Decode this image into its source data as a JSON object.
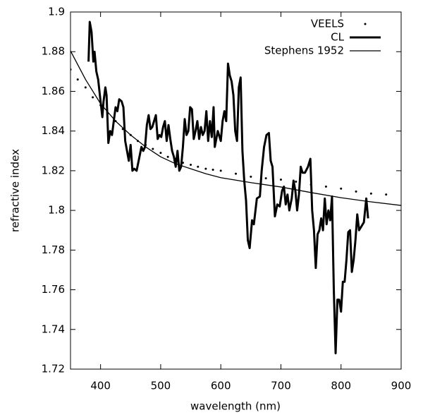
{
  "chart_data": {
    "type": "line",
    "xlabel": "wavelength (nm)",
    "ylabel": "refractive index",
    "xlim": [
      350,
      900
    ],
    "xticks": [
      400,
      500,
      600,
      700,
      800,
      900
    ],
    "ylim": [
      1.72,
      1.9
    ],
    "yticks": [
      1.72,
      1.74,
      1.76,
      1.78,
      1.8,
      1.82,
      1.84,
      1.86,
      1.88,
      1.9
    ],
    "legend": "upper right",
    "series": [
      {
        "name": "VEELS",
        "color": "#000000",
        "style": "dots",
        "width": 3,
        "x": [
          350,
          362,
          375,
          387,
          400,
          412,
          425,
          437,
          450,
          462,
          475,
          487,
          500,
          512,
          525,
          537,
          550,
          562,
          575,
          587,
          600,
          625,
          650,
          675,
          700,
          725,
          750,
          775,
          800,
          825,
          850,
          875
        ],
        "values": [
          1.871,
          1.866,
          1.862,
          1.857,
          1.853,
          1.849,
          1.845,
          1.841,
          1.838,
          1.835,
          1.833,
          1.831,
          1.829,
          1.827,
          1.826,
          1.824,
          1.823,
          1.822,
          1.821,
          1.8205,
          1.82,
          1.8185,
          1.817,
          1.8162,
          1.8155,
          1.8145,
          1.813,
          1.812,
          1.811,
          1.8095,
          1.8085,
          1.808
        ]
      },
      {
        "name": "CL",
        "color": "#000000",
        "style": "line",
        "width": 3,
        "x": [
          380,
          382,
          385,
          388,
          390,
          393,
          396,
          400,
          403,
          405,
          408,
          410,
          413,
          416,
          419,
          422,
          425,
          428,
          431,
          435,
          438,
          441,
          444,
          447,
          450,
          453,
          456,
          460,
          464,
          468,
          471,
          474,
          477,
          480,
          483,
          486,
          489,
          492,
          495,
          498,
          501,
          504,
          507,
          510,
          513,
          516,
          519,
          522,
          525,
          528,
          531,
          534,
          537,
          540,
          543,
          546,
          549,
          552,
          555,
          558,
          561,
          564,
          567,
          570,
          573,
          576,
          579,
          582,
          585,
          588,
          590,
          595,
          600,
          603,
          606,
          609,
          612,
          615,
          618,
          621,
          624,
          627,
          630,
          633,
          636,
          639,
          642,
          645,
          648,
          652,
          655,
          660,
          665,
          668,
          672,
          676,
          680,
          683,
          686,
          690,
          694,
          698,
          702,
          705,
          708,
          711,
          714,
          718,
          721,
          724,
          727,
          730,
          733,
          736,
          740,
          745,
          749,
          752,
          755,
          758,
          761,
          764,
          767,
          770,
          773,
          776,
          779,
          782,
          785,
          788,
          791,
          794,
          797,
          800,
          803,
          806,
          809,
          812,
          815,
          818,
          821,
          824,
          827,
          830,
          834,
          838,
          842,
          845
        ],
        "values": [
          1.875,
          1.895,
          1.89,
          1.875,
          1.88,
          1.87,
          1.866,
          1.855,
          1.847,
          1.855,
          1.862,
          1.858,
          1.834,
          1.84,
          1.838,
          1.845,
          1.852,
          1.85,
          1.856,
          1.855,
          1.852,
          1.835,
          1.83,
          1.825,
          1.833,
          1.82,
          1.821,
          1.82,
          1.826,
          1.832,
          1.83,
          1.832,
          1.843,
          1.848,
          1.841,
          1.842,
          1.845,
          1.848,
          1.836,
          1.838,
          1.837,
          1.842,
          1.845,
          1.835,
          1.843,
          1.836,
          1.83,
          1.827,
          1.822,
          1.83,
          1.82,
          1.822,
          1.832,
          1.846,
          1.838,
          1.84,
          1.852,
          1.851,
          1.836,
          1.84,
          1.845,
          1.836,
          1.842,
          1.838,
          1.84,
          1.85,
          1.835,
          1.845,
          1.837,
          1.852,
          1.832,
          1.84,
          1.835,
          1.845,
          1.85,
          1.845,
          1.874,
          1.868,
          1.865,
          1.858,
          1.84,
          1.835,
          1.862,
          1.867,
          1.83,
          1.815,
          1.805,
          1.785,
          1.781,
          1.795,
          1.793,
          1.806,
          1.807,
          1.82,
          1.832,
          1.838,
          1.839,
          1.825,
          1.822,
          1.797,
          1.803,
          1.802,
          1.81,
          1.812,
          1.803,
          1.808,
          1.8,
          1.806,
          1.815,
          1.81,
          1.8,
          1.808,
          1.822,
          1.819,
          1.819,
          1.822,
          1.826,
          1.8,
          1.79,
          1.771,
          1.788,
          1.79,
          1.796,
          1.79,
          1.806,
          1.793,
          1.8,
          1.795,
          1.807,
          1.76,
          1.728,
          1.755,
          1.755,
          1.749,
          1.764,
          1.764,
          1.775,
          1.789,
          1.79,
          1.769,
          1.775,
          1.785,
          1.798,
          1.79,
          1.792,
          1.794,
          1.806,
          1.796
        ]
      },
      {
        "name": "Stephens 1952",
        "color": "#000000",
        "style": "line",
        "width": 1.3,
        "x": [
          350,
          375,
          400,
          425,
          450,
          475,
          500,
          525,
          550,
          575,
          600,
          650,
          700,
          750,
          800,
          850,
          900
        ],
        "values": [
          1.8804,
          1.866,
          1.8538,
          1.845,
          1.838,
          1.832,
          1.827,
          1.8235,
          1.821,
          1.8185,
          1.8165,
          1.814,
          1.8118,
          1.809,
          1.8064,
          1.8043,
          1.8025
        ]
      }
    ]
  }
}
